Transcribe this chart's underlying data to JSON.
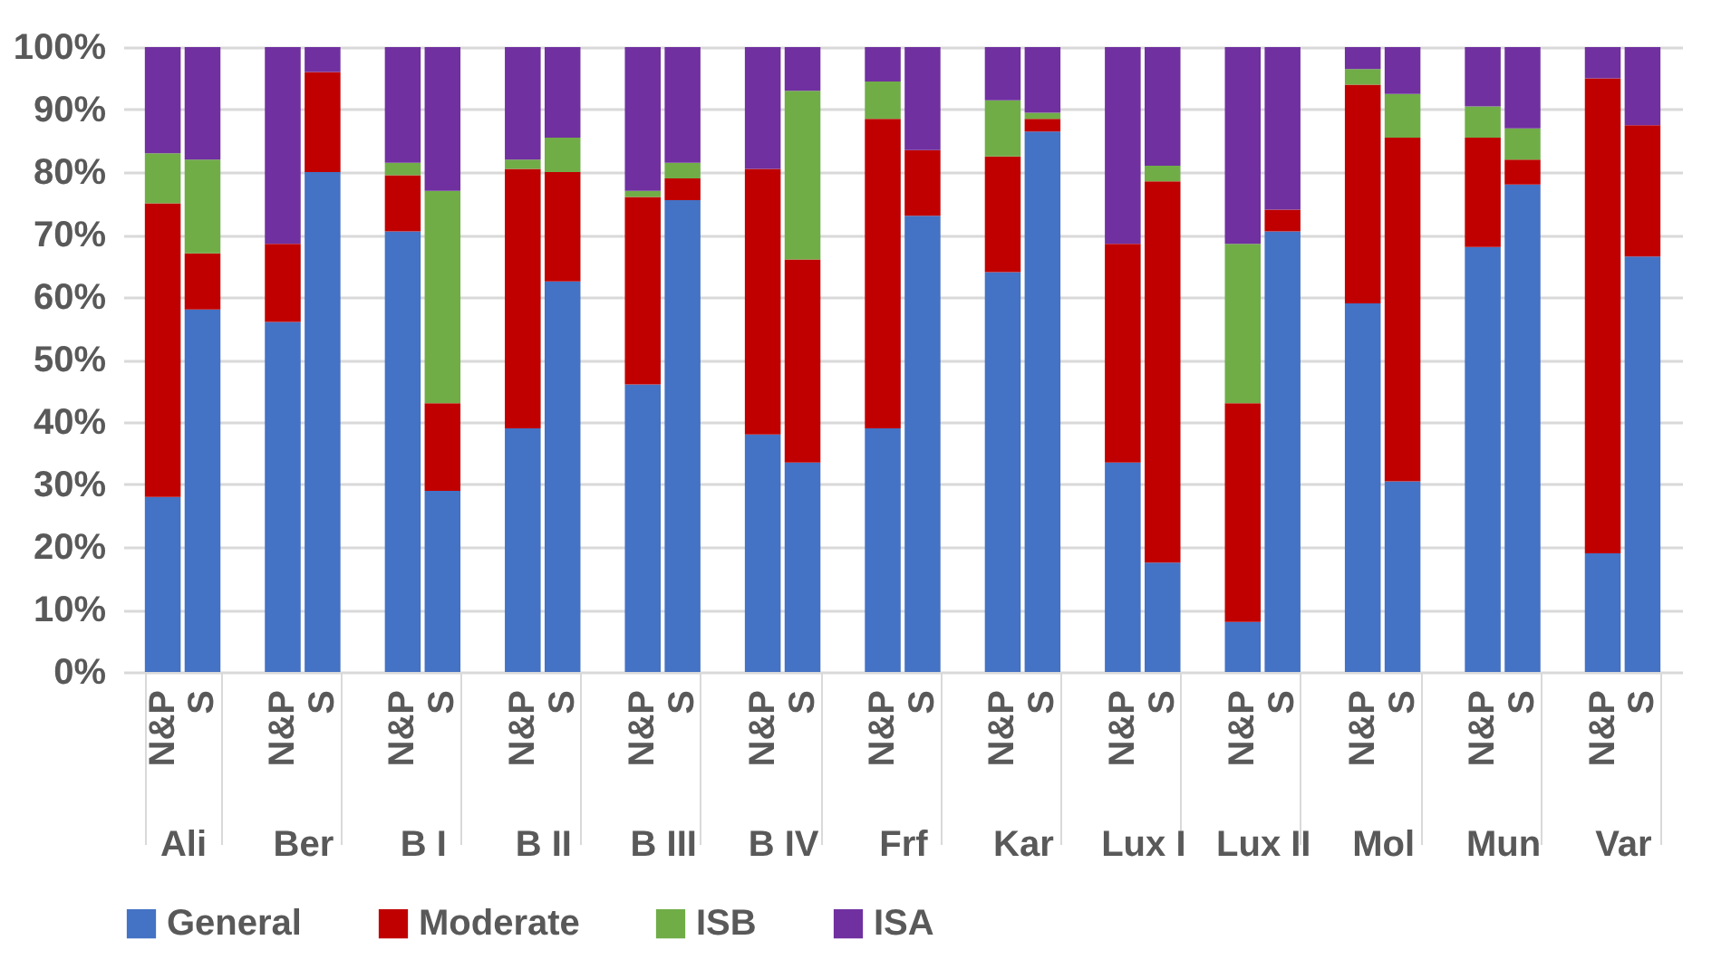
{
  "chart_data": {
    "type": "bar",
    "stacked": true,
    "categories": [
      "N&P",
      "S",
      "N&P",
      "S",
      "N&P",
      "S",
      "N&P",
      "S",
      "N&P",
      "S",
      "N&P",
      "S",
      "N&P",
      "S",
      "N&P",
      "S",
      "N&P",
      "S",
      "N&P",
      "S",
      "N&P",
      "S",
      "N&P",
      "S",
      "N&P",
      "S"
    ],
    "annotations": [
      "Ali",
      "Ber",
      "B I",
      "B II",
      "B III",
      "B IV",
      "Frf",
      "Kar",
      "Lux I",
      "Lux II",
      "Mol",
      "Mun",
      "Var"
    ],
    "series": [
      {
        "name": "General",
        "color": "#4472c4",
        "values": [
          28,
          58,
          56,
          80,
          70.5,
          29,
          39,
          62.5,
          46,
          75.5,
          38,
          33.5,
          39,
          73,
          64,
          86.5,
          33.5,
          17.5,
          8,
          70.5,
          59,
          30.5,
          68,
          78,
          19,
          66.5
        ]
      },
      {
        "name": "Moderate",
        "color": "#c00000",
        "values": [
          47,
          9,
          12.5,
          16,
          9,
          14,
          41.5,
          17.5,
          30,
          3.5,
          42.5,
          32.5,
          49.5,
          10.5,
          18.5,
          2,
          35,
          61,
          35,
          3.5,
          35,
          55,
          17.5,
          4,
          76,
          21
        ]
      },
      {
        "name": "ISB",
        "color": "#70ad47",
        "values": [
          8,
          15,
          0,
          0,
          2,
          34,
          1.5,
          5.5,
          1,
          2.5,
          0,
          27,
          6,
          0,
          9,
          1,
          0,
          2.5,
          25.5,
          0,
          2.5,
          7,
          5,
          5,
          0,
          0
        ]
      },
      {
        "name": "ISA",
        "color": "#7030a0",
        "values": [
          17,
          18,
          31.5,
          4,
          18.5,
          23,
          18,
          14.5,
          23,
          18.5,
          19.5,
          7,
          5.5,
          16.5,
          8.5,
          10.5,
          31.5,
          19,
          31.5,
          26,
          3.5,
          7.5,
          9.5,
          13,
          5,
          12.5
        ]
      }
    ],
    "ylim": [
      0,
      100
    ],
    "yticks": [
      {
        "value": 0,
        "label": "0%"
      },
      {
        "value": 10,
        "label": "10%"
      },
      {
        "value": 20,
        "label": "20%"
      },
      {
        "value": 30,
        "label": "30%"
      },
      {
        "value": 40,
        "label": "40%"
      },
      {
        "value": 50,
        "label": "50%"
      },
      {
        "value": 60,
        "label": "60%"
      },
      {
        "value": 70,
        "label": "70%"
      },
      {
        "value": 80,
        "label": "80%"
      },
      {
        "value": 90,
        "label": "90%"
      },
      {
        "value": 100,
        "label": "100%"
      }
    ],
    "grid": "y",
    "legend": "bottom"
  }
}
